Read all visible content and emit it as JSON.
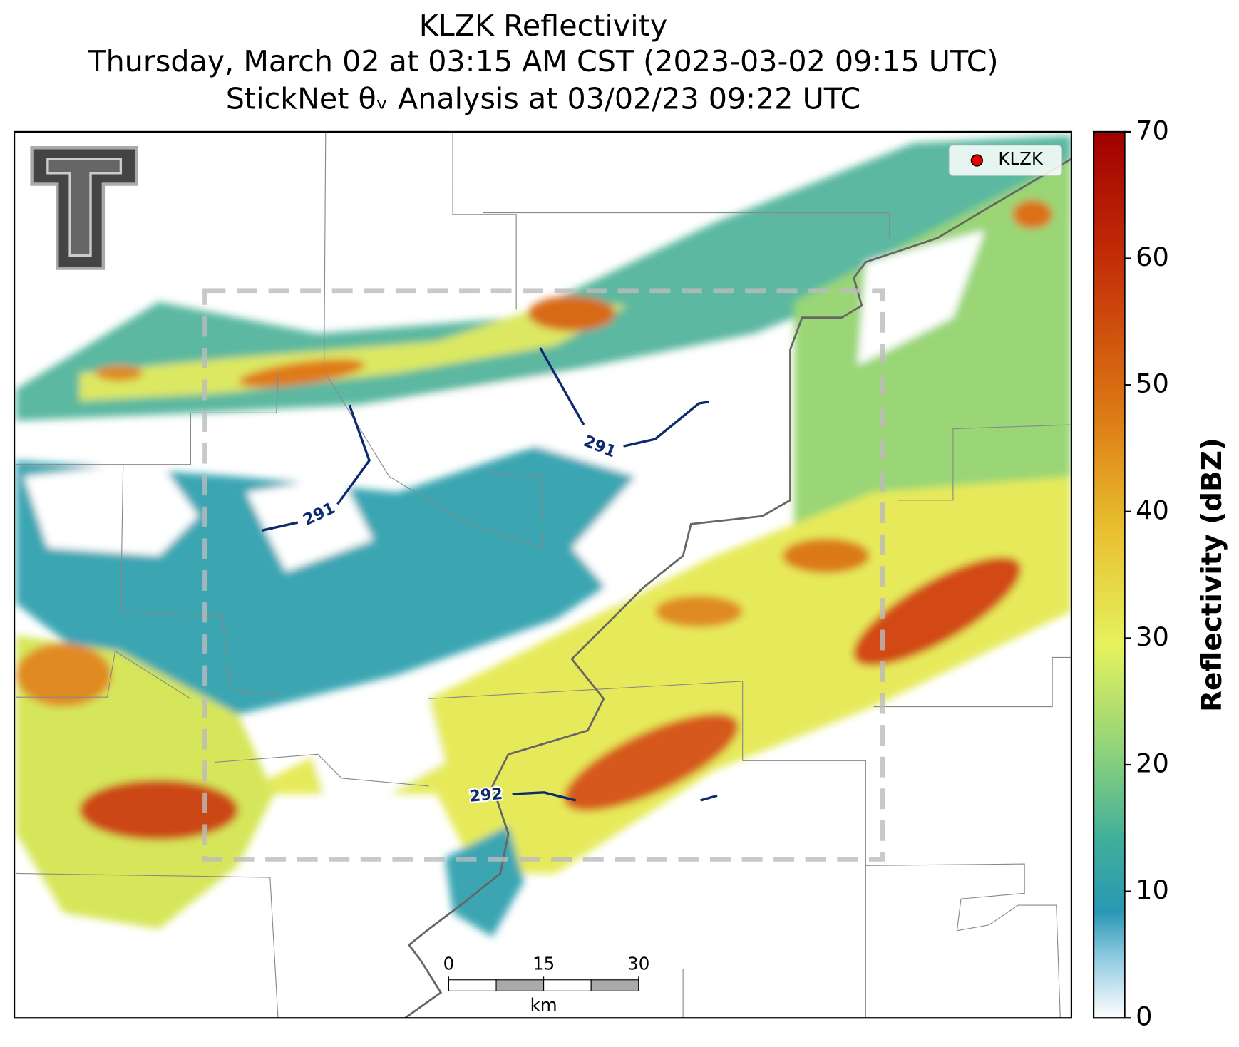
{
  "title": [
    "KLZK Reflectivity",
    "Thursday, March 02 at 03:15 AM CST (2023-03-02 09:15 UTC)",
    "StickNet θᵥ Analysis at 03/02/23 09:22 UTC"
  ],
  "legend": {
    "label": "KLZK",
    "color": "#ee0000"
  },
  "colorbar": {
    "label": "Reflectivity (dBZ)",
    "lim": [
      0,
      70
    ],
    "ticks": [
      0,
      10,
      20,
      30,
      40,
      50,
      60,
      70
    ]
  },
  "contours": [
    {
      "level": 291
    },
    {
      "level": 291
    },
    {
      "level": 292
    }
  ],
  "scale_bar": {
    "ticks": [
      0,
      15,
      30
    ],
    "unit": "km"
  }
}
